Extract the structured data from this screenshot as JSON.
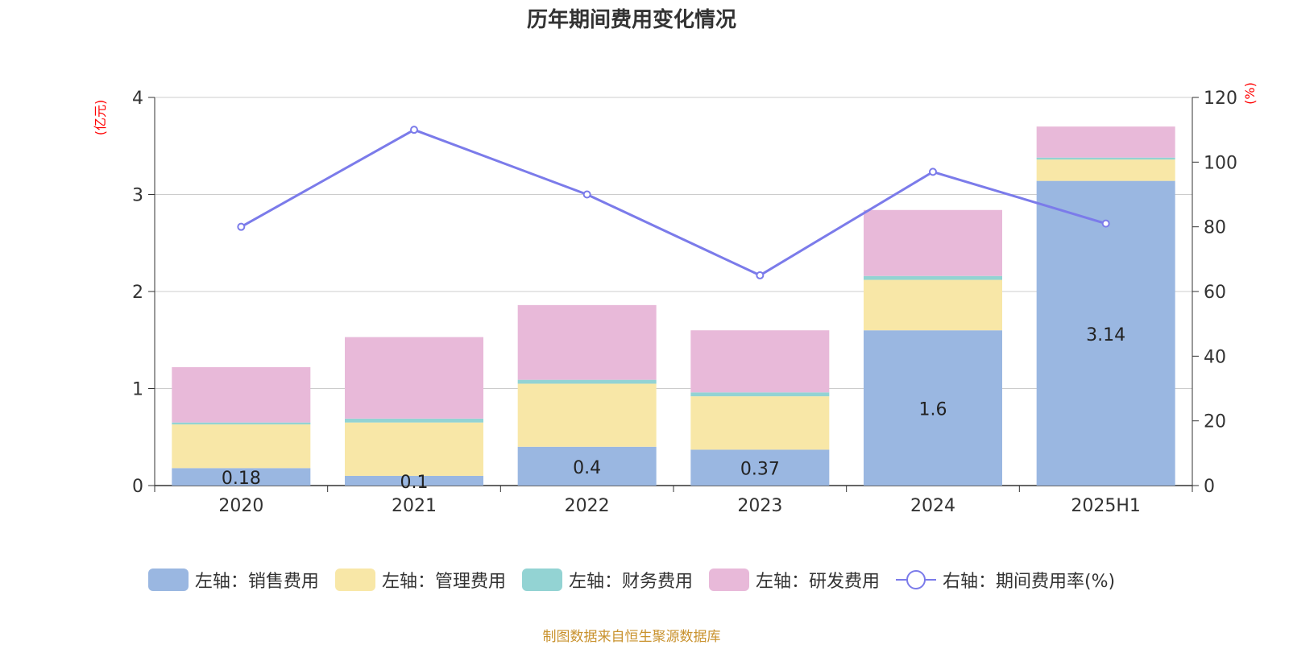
{
  "chart_data": {
    "type": "bar",
    "title": "历年期间费用变化情况",
    "categories": [
      "2020",
      "2021",
      "2022",
      "2023",
      "2024",
      "2025H1"
    ],
    "left_axis_label": "(亿元)",
    "right_axis_label": "(%)",
    "left_ylim": [
      0,
      4
    ],
    "left_ticks": [
      "0",
      "1",
      "2",
      "3",
      "4"
    ],
    "right_ylim": [
      0,
      120
    ],
    "right_ticks": [
      "0",
      "20",
      "40",
      "60",
      "80",
      "100",
      "120"
    ],
    "series": [
      {
        "name": "左轴：销售费用",
        "type": "bar",
        "color": "#9ab7e1",
        "values": [
          0.18,
          0.1,
          0.4,
          0.37,
          1.6,
          3.14
        ],
        "labels": [
          "0.18",
          "0.1",
          "0.4",
          "0.37",
          "1.6",
          "3.14"
        ]
      },
      {
        "name": "左轴：管理费用",
        "type": "bar",
        "color": "#f8e7a7",
        "values": [
          0.45,
          0.55,
          0.65,
          0.55,
          0.52,
          0.22
        ]
      },
      {
        "name": "左轴：财务费用",
        "type": "bar",
        "color": "#93d3d3",
        "values": [
          0.02,
          0.04,
          0.04,
          0.04,
          0.04,
          0.02
        ]
      },
      {
        "name": "左轴：研发费用",
        "type": "bar",
        "color": "#e8b9d9",
        "values": [
          0.57,
          0.84,
          0.77,
          0.64,
          0.68,
          0.32
        ]
      },
      {
        "name": "右轴：期间费用率(%)",
        "type": "line",
        "axis": "right",
        "color": "#7b7bea",
        "values": [
          80,
          110,
          90,
          65,
          97,
          81
        ]
      }
    ]
  },
  "source": "制图数据来自恒生聚源数据库"
}
